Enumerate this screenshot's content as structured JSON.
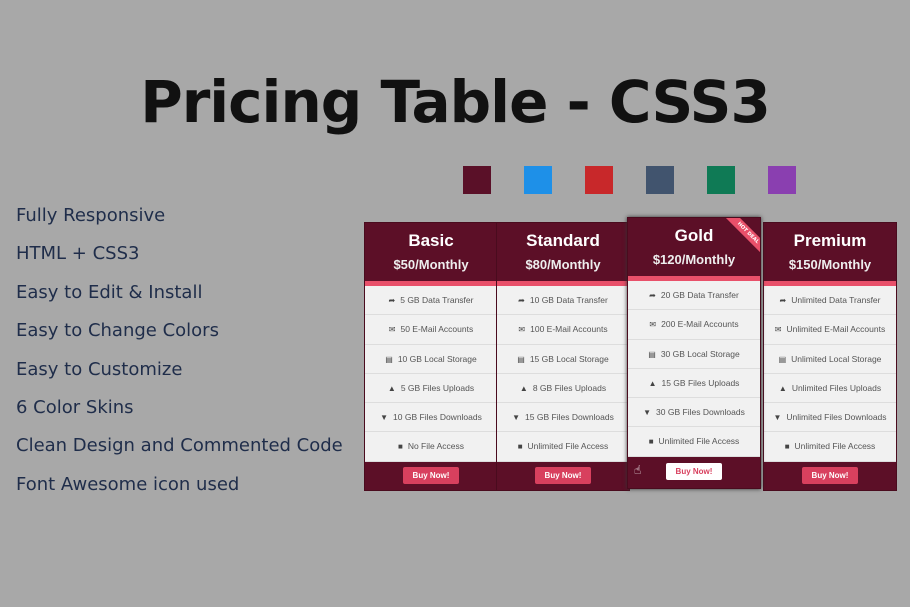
{
  "title": "Pricing Table - CSS3",
  "swatches": [
    "#5a1028",
    "#1e90e8",
    "#c8282a",
    "#41546e",
    "#0f7a55",
    "#8a3fb0"
  ],
  "features": [
    "Fully Responsive",
    "HTML + CSS3",
    "Easy to Edit & Install",
    "Easy to Change Colors",
    "Easy to Customize",
    "6 Color Skins",
    "Clean Design and Commented Code",
    "Font Awesome icon used"
  ],
  "row_icons": [
    "share-icon",
    "envelope-icon",
    "hdd-icon",
    "upload-icon",
    "download-icon",
    "file-icon"
  ],
  "plans": [
    {
      "name": "Basic",
      "price": "$50/Monthly",
      "rows": [
        "5 GB Data Transfer",
        "50 E-Mail Accounts",
        "10 GB Local Storage",
        "5 GB Files Uploads",
        "10 GB Files Downloads",
        "No File Access"
      ],
      "button": "Buy Now!"
    },
    {
      "name": "Standard",
      "price": "$80/Monthly",
      "rows": [
        "10 GB Data Transfer",
        "100 E-Mail Accounts",
        "15 GB Local Storage",
        "8 GB Files Uploads",
        "15 GB Files Downloads",
        "Unlimited File Access"
      ],
      "button": "Buy Now!"
    },
    {
      "name": "Gold",
      "price": "$120/Monthly",
      "ribbon": "HOT DEAL",
      "rows": [
        "20 GB Data Transfer",
        "200 E-Mail Accounts",
        "30 GB Local Storage",
        "15 GB Files Uploads",
        "30 GB Files Downloads",
        "Unlimited File Access"
      ],
      "button": "Buy Now!"
    },
    {
      "name": "Premium",
      "price": "$150/Monthly",
      "rows": [
        "Unlimited Data Transfer",
        "Unlimited E-Mail Accounts",
        "Unlimited Local Storage",
        "Unlimited Files Uploads",
        "Unlimited Files Downloads",
        "Unlimited File Access"
      ],
      "button": "Buy Now!"
    }
  ],
  "colors": {
    "header": "#5c0f27",
    "accent": "#e8506a",
    "background": "#a8a8a8"
  }
}
